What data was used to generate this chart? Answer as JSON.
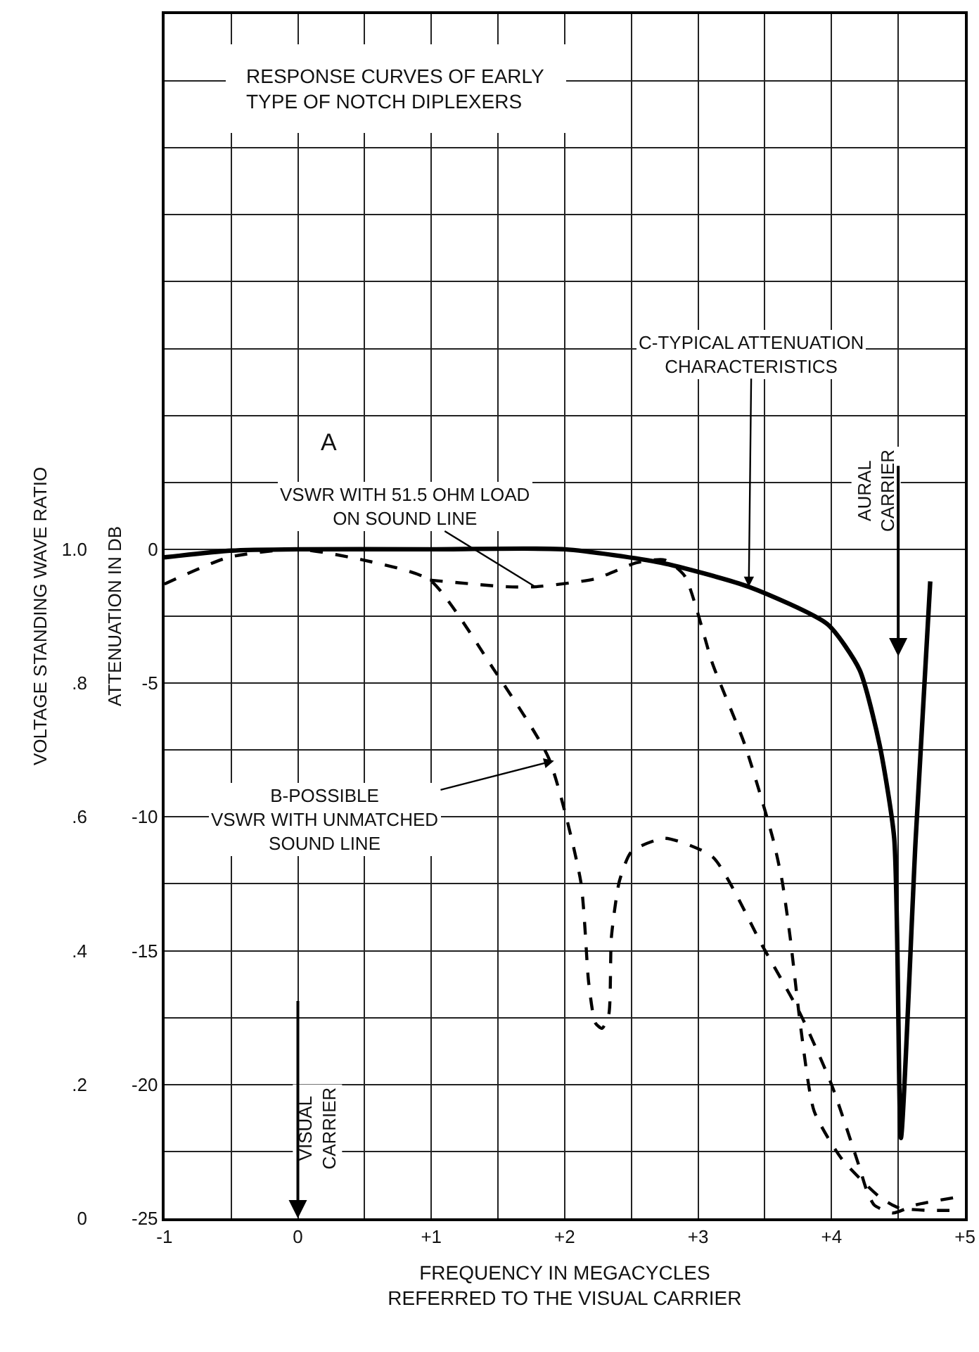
{
  "chart_data": {
    "type": "line",
    "title": "RESPONSE CURVES OF EARLY\nTYPE OF NOTCH DIPLEXERS",
    "xlabel": "FREQUENCY IN MEGACYCLES\nREFERRED TO THE VISUAL CARRIER",
    "ylabel": "ATTENUATION IN DB",
    "y2label": "VOLTAGE STANDING WAVE RATIO",
    "series": [
      {
        "color": "#000000",
        "line_style": "dashed",
        "x": [
          0.99,
          1.57,
          1.78,
          2.23,
          2.54,
          2.75,
          2.9,
          3.11,
          3.35,
          3.56,
          3.63,
          3.69,
          3.77,
          3.87,
          4.08,
          4.36,
          4.5,
          4.7,
          4.95
        ],
        "values": [
          -1.15,
          -1.4,
          -1.4,
          -1.1,
          -0.5,
          -0.4,
          -1.0,
          -4.3,
          -7.3,
          -10.8,
          -12.4,
          -14.5,
          -17.9,
          -21,
          -22.8,
          -24.2,
          -24.6,
          -24.7,
          -24.7
        ]
      },
      {
        "color": "#000000",
        "line_style": "dashed",
        "x": [
          -1,
          -0.52,
          0,
          0.49,
          0.99,
          1.47,
          1.88,
          2.12,
          2.18,
          2.23,
          2.28,
          2.33,
          2.35,
          2.41,
          2.5,
          2.75,
          3.11,
          3.48,
          3.77,
          4.0,
          4.21,
          4.26,
          4.32,
          4.46,
          4.63,
          4.95
        ],
        "values": [
          -1.3,
          -0.3,
          0,
          -0.4,
          -1.15,
          -4.5,
          -7.8,
          -12.4,
          -16.2,
          -17.7,
          -17.9,
          -17.4,
          -14.5,
          -12.4,
          -11.3,
          -10.8,
          -11.5,
          -14.8,
          -17.4,
          -20,
          -23.1,
          -23.9,
          -24.5,
          -24.8,
          -24.5,
          -24.2
        ]
      },
      {
        "color": "#000000",
        "line_style": "solid",
        "x": [
          -1,
          -0.5,
          0,
          1,
          2,
          2.72,
          3.38,
          3.97,
          4.21,
          4.36,
          4.47,
          4.52,
          4.63,
          4.74
        ],
        "values": [
          -0.3,
          -0.05,
          0,
          0,
          0,
          -0.5,
          -1.4,
          -2.8,
          -4.5,
          -7.3,
          -10.8,
          -22,
          -10.9,
          -1.2
        ]
      }
    ],
    "annotations": [
      "A",
      {
        "text": "VSWR WITH 51.5 OHM LOAD\nON SOUND LINE",
        "x": 1.78,
        "y": -1.4
      },
      {
        "text": "B-POSSIBLE\nVSWR WITH UNMATCHED\nSOUND LINE",
        "x": 1.92,
        "y": -7.9
      },
      {
        "text": "C-TYPICAL ATTENUATION\nCHARACTERISTICS",
        "x": 3.38,
        "y": -1.4
      },
      "VISUAL\nCARRIER",
      "AURAL\nCARRIER"
    ],
    "xlim": [
      -1,
      5
    ],
    "xticks": [
      -1,
      {
        "value": -0.5,
        "label": null
      },
      0,
      {
        "value": 0.5,
        "label": null
      },
      {
        "value": 1,
        "label": "+1"
      },
      {
        "value": 1.5,
        "label": null
      },
      {
        "value": 2,
        "label": "+2"
      },
      {
        "value": 2.5,
        "label": null
      },
      {
        "value": 3,
        "label": "+3"
      },
      {
        "value": 3.5,
        "label": null
      },
      {
        "value": 4,
        "label": "+4"
      },
      {
        "value": 4.5,
        "label": null
      },
      {
        "value": 5,
        "label": "+5"
      }
    ],
    "ylim": [
      -25,
      20
    ],
    "yticks": [
      -25,
      {
        "value": -22.5,
        "label": null
      },
      -20,
      {
        "value": -17.5,
        "label": null
      },
      -15,
      {
        "value": -12.5,
        "label": null
      },
      -10,
      {
        "value": -7.5,
        "label": null
      },
      -5,
      {
        "value": -2.5,
        "label": null
      },
      0,
      {
        "value": 2.5,
        "label": null
      },
      {
        "value": 5,
        "label": null
      },
      {
        "value": 7.5,
        "label": null
      },
      {
        "value": 10,
        "label": null
      },
      {
        "value": 12.5,
        "label": null
      },
      {
        "value": 15,
        "label": null
      },
      {
        "value": 17.5,
        "label": null
      }
    ],
    "y2lim": [
      0,
      1.8
    ],
    "y2ticks": [
      0,
      {
        "value": 0.2,
        "label": ".2"
      },
      {
        "value": 0.4,
        "label": ".4"
      },
      {
        "value": 0.6,
        "label": ".6"
      },
      {
        "value": 0.8,
        "label": ".8"
      },
      {
        "value": 1.0,
        "label": "1.0"
      }
    ],
    "grid": true,
    "marker": "none"
  }
}
